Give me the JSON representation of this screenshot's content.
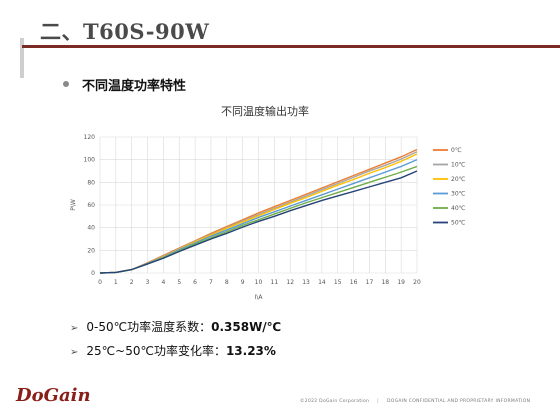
{
  "slide": {
    "title": "二、T60S-90W",
    "subheading": "不同温度功率特性",
    "notes": [
      {
        "text": "0-50℃功率温度系数：",
        "bold": "0.358W/℃"
      },
      {
        "text": "25℃~50℃功率变化率：",
        "bold": "13.23%"
      }
    ],
    "logo": "DoGain",
    "footer_left": "©2022 DoGain Corporation",
    "footer_right": "DOGAIN CONFIDENTIAL AND PROPRIETARY INFORMATION"
  },
  "chart_data": {
    "type": "line",
    "title": "不同温度输出功率",
    "xlabel": "I\\A",
    "ylabel": "P\\W",
    "xlim": [
      0,
      20
    ],
    "ylim": [
      0,
      120
    ],
    "xticks": [
      0,
      1,
      2,
      3,
      4,
      5,
      6,
      7,
      8,
      9,
      10,
      11,
      12,
      13,
      14,
      15,
      16,
      17,
      18,
      19,
      20
    ],
    "yticks": [
      0,
      20,
      40,
      60,
      80,
      100,
      120
    ],
    "grid": true,
    "legend_position": "right",
    "x": [
      0,
      1,
      2,
      3,
      4,
      5,
      6,
      7,
      8,
      9,
      10,
      11,
      12,
      13,
      14,
      15,
      16,
      17,
      18,
      19,
      20
    ],
    "series": [
      {
        "name": "0℃",
        "color": "#ed7d31",
        "values": [
          0,
          0.5,
          3,
          9,
          15.5,
          22,
          28.5,
          35,
          41,
          47,
          53,
          58.5,
          64,
          69.5,
          75,
          80.5,
          86,
          91.5,
          97,
          102.5,
          109
        ]
      },
      {
        "name": "10℃",
        "color": "#a5a5a5",
        "values": [
          0,
          0.5,
          3,
          8.5,
          15,
          21.5,
          28,
          34,
          40,
          46,
          51.5,
          57,
          62.5,
          68,
          73.5,
          79,
          84.5,
          90,
          95,
          100.5,
          107
        ]
      },
      {
        "name": "20℃",
        "color": "#ffc000",
        "values": [
          0,
          0.5,
          3,
          8.5,
          14.5,
          21,
          27.5,
          33.5,
          39.5,
          45,
          50.5,
          56,
          61.5,
          66.5,
          72,
          77.5,
          82.5,
          88,
          93,
          98.5,
          105
        ]
      },
      {
        "name": "30℃",
        "color": "#5b9bd5",
        "values": [
          0,
          0.5,
          3,
          8.5,
          14,
          20.5,
          26.5,
          32.5,
          38,
          43.5,
          49,
          54,
          59,
          64,
          69,
          74,
          79,
          84,
          89,
          94,
          100
        ]
      },
      {
        "name": "40℃",
        "color": "#70ad47",
        "values": [
          0,
          0.5,
          3,
          8,
          13.5,
          19.5,
          25.5,
          31,
          36.5,
          42,
          47,
          52,
          57,
          62,
          66.5,
          71,
          75.5,
          80,
          84.5,
          89,
          94
        ]
      },
      {
        "name": "50℃",
        "color": "#264478",
        "values": [
          0,
          0.5,
          3,
          8,
          13,
          19,
          24.5,
          30,
          35,
          40.5,
          45.5,
          50,
          55,
          59.5,
          64,
          68,
          72,
          76,
          80,
          84,
          90
        ]
      }
    ]
  }
}
